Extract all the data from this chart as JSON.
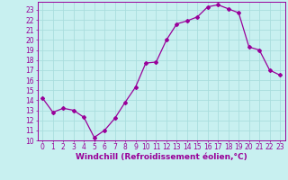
{
  "x": [
    0,
    1,
    2,
    3,
    4,
    5,
    6,
    7,
    8,
    9,
    10,
    11,
    12,
    13,
    14,
    15,
    16,
    17,
    18,
    19,
    20,
    21,
    22,
    23
  ],
  "y": [
    14.2,
    12.8,
    13.2,
    13.0,
    12.3,
    10.3,
    11.0,
    12.2,
    13.8,
    15.3,
    17.7,
    17.8,
    20.0,
    21.6,
    21.9,
    22.3,
    23.3,
    23.5,
    23.1,
    22.7,
    19.3,
    19.0,
    17.0,
    16.5
  ],
  "line_color": "#990099",
  "marker": "D",
  "marker_size": 2.0,
  "linewidth": 0.9,
  "background_color": "#c8f0f0",
  "grid_color": "#aadddd",
  "xlabel": "Windchill (Refroidissement éolien,°C)",
  "xlabel_color": "#990099",
  "tick_color": "#990099",
  "xlim": [
    -0.5,
    23.5
  ],
  "ylim": [
    10,
    23.8
  ],
  "yticks": [
    10,
    11,
    12,
    13,
    14,
    15,
    16,
    17,
    18,
    19,
    20,
    21,
    22,
    23
  ],
  "xticks": [
    0,
    1,
    2,
    3,
    4,
    5,
    6,
    7,
    8,
    9,
    10,
    11,
    12,
    13,
    14,
    15,
    16,
    17,
    18,
    19,
    20,
    21,
    22,
    23
  ],
  "tick_fontsize": 5.5,
  "xlabel_fontsize": 6.5
}
